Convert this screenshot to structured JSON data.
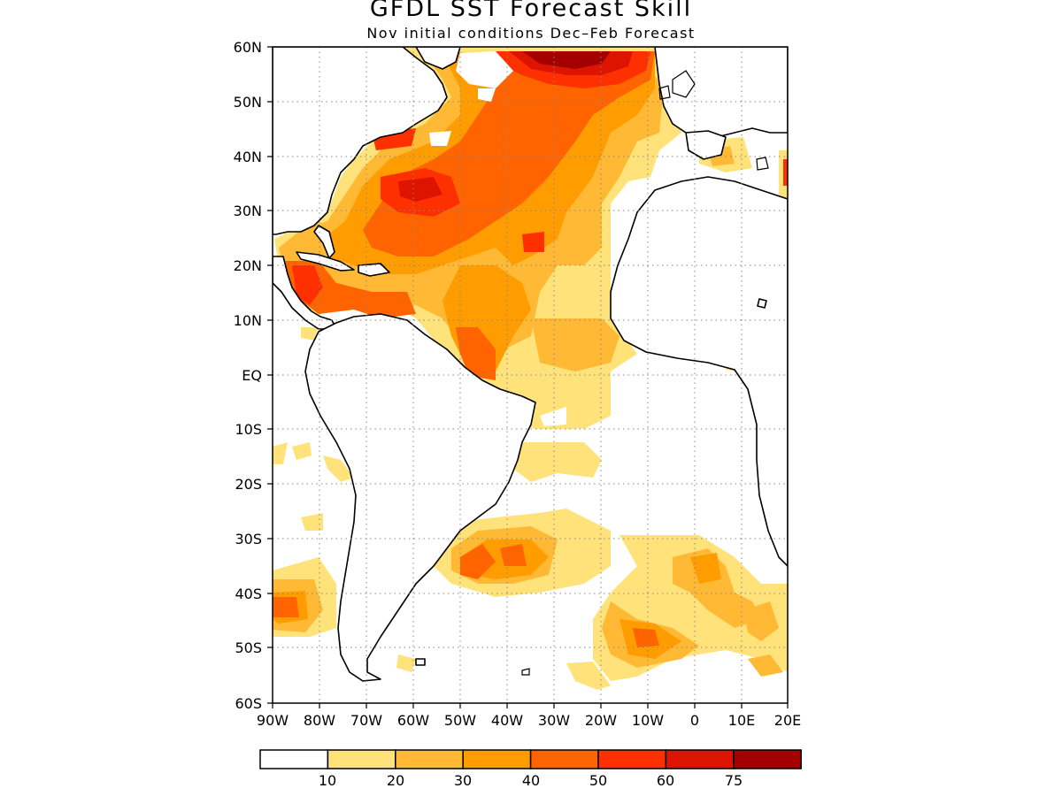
{
  "title": "GFDL SST Forecast Skill",
  "subtitle": "Nov initial conditions   Dec–Feb Forecast",
  "map": {
    "lon_range": [
      -90,
      20
    ],
    "lat_range": [
      -60,
      60
    ],
    "grid": "dotted",
    "lat_ticks": [
      "60N",
      "50N",
      "40N",
      "30N",
      "20N",
      "10N",
      "EQ",
      "10S",
      "20S",
      "30S",
      "40S",
      "50S",
      "60S"
    ],
    "lon_ticks": [
      "90W",
      "80W",
      "70W",
      "60W",
      "50W",
      "40W",
      "30W",
      "20W",
      "10W",
      "0",
      "10E",
      "20E"
    ]
  },
  "colorbar": {
    "colors": [
      "#ffffff",
      "#ffe27a",
      "#ffb934",
      "#ff9c00",
      "#ff6400",
      "#ff3000",
      "#dd1400",
      "#a50000"
    ],
    "labels": [
      "10",
      "20",
      "30",
      "40",
      "50",
      "60",
      "75"
    ]
  }
}
